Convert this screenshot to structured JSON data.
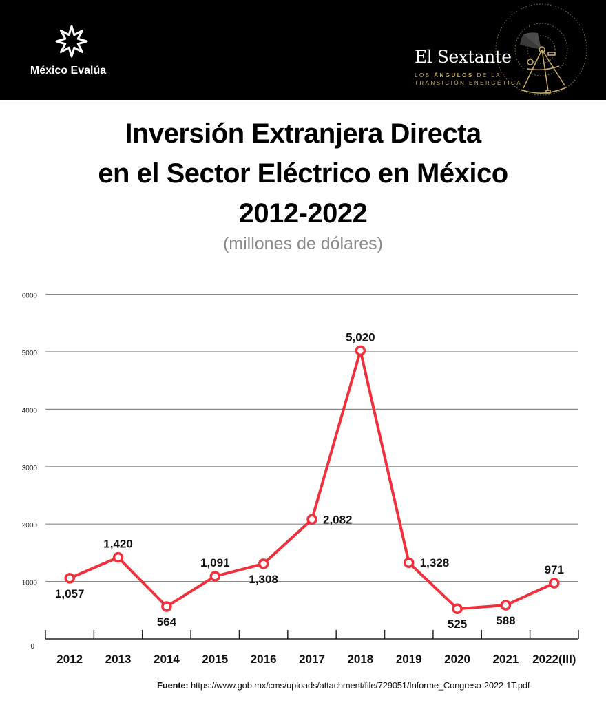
{
  "header": {
    "left_logo_name": "México Evalúa",
    "right_logo_title": "El Sextante",
    "right_logo_subtitle_line1_pre": "LOS ",
    "right_logo_subtitle_line1_bold": "ÁNGULOS",
    "right_logo_subtitle_line1_post": " DE LA",
    "right_logo_subtitle_line2": "TRANSICIÓN ENERGÉTICA",
    "colors": {
      "background": "#000000",
      "gold": "#c9b06a"
    }
  },
  "source": {
    "label": "Fuente:",
    "text": "https://www.gob.mx/cms/uploads/attachment/file/729051/Informe_Congreso-2022-1T.pdf"
  },
  "chart_data": {
    "type": "line",
    "title_lines": [
      "Inversión Extranjera Directa",
      "en el Sector Eléctrico en México",
      "2012-2022"
    ],
    "subtitle": "(millones de dólares)",
    "xlabel": "",
    "ylabel": "",
    "categories": [
      "2012",
      "2013",
      "2014",
      "2015",
      "2016",
      "2017",
      "2018",
      "2019",
      "2020",
      "2021",
      "2022(III)"
    ],
    "series": [
      {
        "name": "Inversión Extranjera Directa",
        "values": [
          1057,
          1420,
          564,
          1091,
          1308,
          2082,
          5020,
          1328,
          525,
          588,
          971
        ],
        "labels": [
          "1,057",
          "1,420",
          "564",
          "1,091",
          "1,308",
          "2,082",
          "5,020",
          "1,328",
          "525",
          "588",
          "971"
        ],
        "label_positions": [
          "below",
          "above",
          "below",
          "above",
          "below",
          "right",
          "above",
          "right",
          "below",
          "below",
          "above"
        ],
        "color": "#f0303d"
      }
    ],
    "ylim": [
      0,
      6000
    ],
    "yticks": [
      "0",
      "1000",
      "2000",
      "3000",
      "4000",
      "5000",
      "6000"
    ],
    "grid": true,
    "legend": "none"
  }
}
